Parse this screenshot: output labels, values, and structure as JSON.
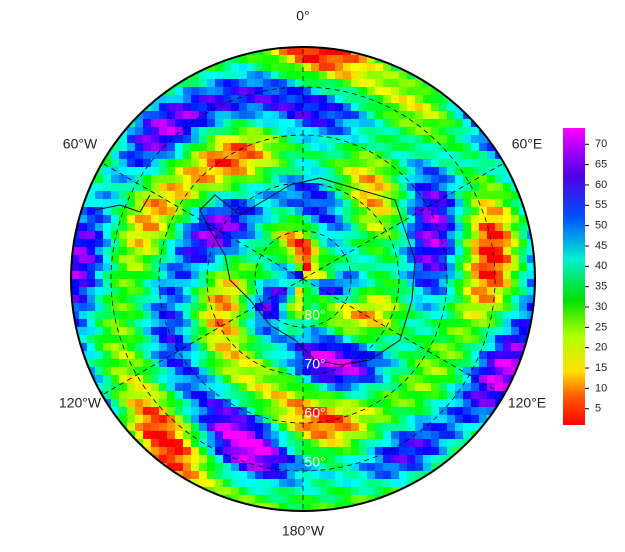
{
  "map": {
    "longitude_labels": [
      "0°",
      "60°E",
      "120°E",
      "180°W",
      "120°W",
      "60°W"
    ],
    "latitude_labels": [
      "80°",
      "70°",
      "60°",
      "50°"
    ]
  },
  "colorbar": {
    "range": [
      1,
      74
    ],
    "ticks": [
      5,
      10,
      15,
      20,
      25,
      30,
      35,
      40,
      45,
      50,
      55,
      60,
      65,
      70
    ]
  }
}
